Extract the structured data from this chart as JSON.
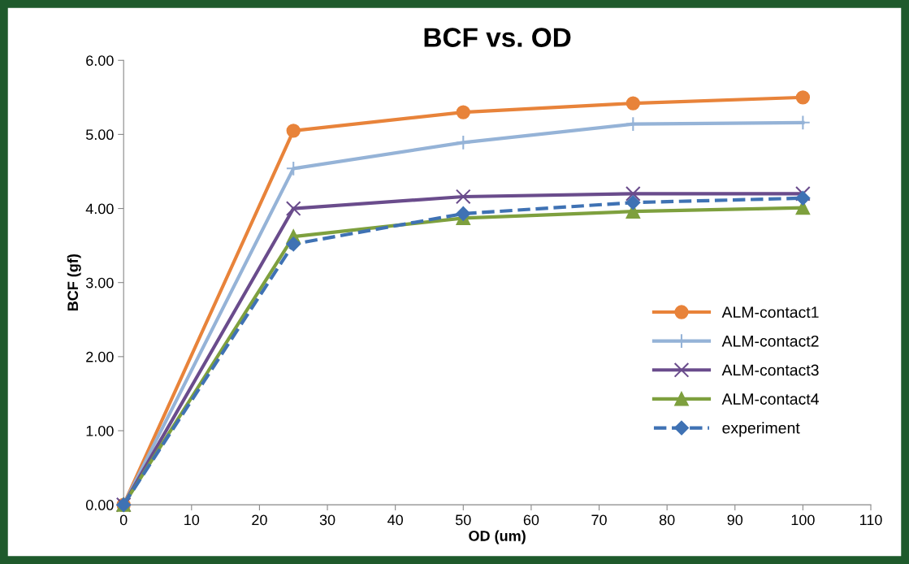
{
  "chart_data": {
    "type": "line",
    "title": "BCF vs. OD",
    "xlabel": "OD (um)",
    "ylabel": "BCF (gf)",
    "x": [
      0,
      25,
      50,
      75,
      100
    ],
    "series": [
      {
        "name": "ALM-contact1",
        "color": "#e8833a",
        "marker": "circle",
        "line_style": "solid",
        "values": [
          0,
          5.05,
          5.3,
          5.42,
          5.5
        ]
      },
      {
        "name": "ALM-contact2",
        "color": "#95b3d7",
        "marker": "plus",
        "line_style": "solid",
        "values": [
          0,
          4.54,
          4.89,
          5.14,
          5.16
        ]
      },
      {
        "name": "ALM-contact3",
        "color": "#6a4c8c",
        "marker": "cross",
        "line_style": "solid",
        "values": [
          0,
          4.0,
          4.16,
          4.2,
          4.2
        ]
      },
      {
        "name": "ALM-contact4",
        "color": "#7ea03e",
        "marker": "triangle",
        "line_style": "solid",
        "values": [
          0,
          3.62,
          3.87,
          3.96,
          4.01
        ]
      },
      {
        "name": "experiment",
        "color": "#3f72b4",
        "marker": "diamond",
        "line_style": "dashed",
        "values": [
          0,
          3.52,
          3.93,
          4.08,
          4.14
        ]
      }
    ],
    "xlim": [
      0,
      110
    ],
    "xticks": [
      0,
      10,
      20,
      30,
      40,
      50,
      60,
      70,
      80,
      90,
      100,
      110
    ],
    "ylim": [
      0,
      6
    ],
    "yticks": [
      {
        "value": 0,
        "label": "0.00"
      },
      {
        "value": 1,
        "label": "1.00"
      },
      {
        "value": 2,
        "label": "2.00"
      },
      {
        "value": 3,
        "label": "3.00"
      },
      {
        "value": 4,
        "label": "4.00"
      },
      {
        "value": 5,
        "label": "5.00"
      },
      {
        "value": 6,
        "label": "6.00"
      }
    ],
    "grid": false,
    "legend": "right"
  }
}
